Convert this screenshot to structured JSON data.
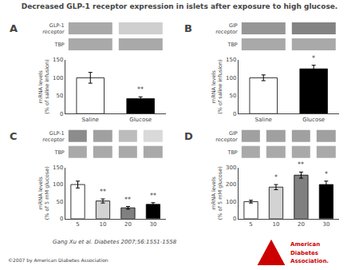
{
  "title": "Decreased GLP-1 receptor expression in islets after exposure to high glucose.",
  "citation": "Gang Xu et al. Diabetes 2007;56:1551-1558",
  "copyright": "©2007 by American Diabetes Association",
  "logo": {
    "texts": [
      "American",
      "Diabetes",
      "Association."
    ],
    "color": "#cc0000"
  },
  "chart_data": [
    {
      "type": "heatmap",
      "title": "A",
      "categories": [
        "GLP-1\nreceptor",
        "TBP"
      ],
      "cells": [
        [
          0.45,
          0.25
        ],
        [
          0.45,
          0.45
        ]
      ],
      "zlim": [
        0,
        1
      ],
      "tick_labels": "y"
    },
    {
      "type": "bar",
      "categories": [
        "Saline",
        "Glucose"
      ],
      "values": [
        100,
        42
      ],
      "errors": [
        15,
        5
      ],
      "colors": [
        "white",
        "black"
      ],
      "ylabel": "mRNA levels\n(% of saline infusion)",
      "ylim": [
        0,
        150
      ],
      "yticks": [
        0,
        50,
        100,
        150
      ],
      "grid": false,
      "annotations": [
        {
          "category": "Glucose",
          "text": "**"
        }
      ]
    },
    {
      "type": "heatmap",
      "title": "B",
      "categories": [
        "GIP\nreceptor",
        "TBP"
      ],
      "cells": [
        [
          0.55,
          0.65
        ],
        [
          0.45,
          0.45
        ]
      ],
      "zlim": [
        0,
        1
      ],
      "tick_labels": "y"
    },
    {
      "type": "bar",
      "categories": [
        "Saline",
        "Glucose"
      ],
      "values": [
        100,
        125
      ],
      "errors": [
        8,
        10
      ],
      "colors": [
        "white",
        "black"
      ],
      "ylabel": "mRNA levels\n(% of saline infusion)",
      "ylim": [
        0,
        150
      ],
      "yticks": [
        0,
        50,
        100,
        150
      ],
      "grid": false,
      "annotations": [
        {
          "category": "Glucose",
          "text": "*"
        }
      ]
    },
    {
      "type": "heatmap",
      "title": "C",
      "categories": [
        "GLP-1\nreceptor",
        "TBP"
      ],
      "cells": [
        [
          0.6,
          0.5,
          0.35,
          0.2
        ],
        [
          0.45,
          0.45,
          0.45,
          0.45
        ]
      ],
      "zlim": [
        0,
        1
      ],
      "tick_labels": "y"
    },
    {
      "type": "bar",
      "categories": [
        "5",
        "10",
        "20",
        "30"
      ],
      "values": [
        100,
        52,
        32,
        42
      ],
      "errors": [
        10,
        6,
        4,
        5
      ],
      "colors": [
        "white",
        "lightgray",
        "gray",
        "black"
      ],
      "ylabel": "mRNA levels\n(% of 5 mM glucose)",
      "ylim": [
        0,
        150
      ],
      "yticks": [
        0,
        50,
        100,
        150
      ],
      "grid": false,
      "annotations": [
        {
          "category": "10",
          "text": "**"
        },
        {
          "category": "20",
          "text": "**"
        },
        {
          "category": "30",
          "text": "**"
        }
      ]
    },
    {
      "type": "heatmap",
      "title": "D",
      "categories": [
        "GIP\nreceptor",
        "TBP"
      ],
      "cells": [
        [
          0.5,
          0.5,
          0.5,
          0.5
        ],
        [
          0.45,
          0.45,
          0.45,
          0.45
        ]
      ],
      "zlim": [
        0,
        1
      ],
      "tick_labels": "y"
    },
    {
      "type": "bar",
      "categories": [
        "5",
        "10",
        "20",
        "30"
      ],
      "values": [
        100,
        185,
        255,
        200
      ],
      "errors": [
        8,
        15,
        18,
        20
      ],
      "colors": [
        "white",
        "lightgray",
        "gray",
        "black"
      ],
      "ylabel": "mRNA levels\n(% of 5 mM glucose)",
      "ylim": [
        0,
        300
      ],
      "yticks": [
        0,
        100,
        200,
        300
      ],
      "grid": false,
      "annotations": [
        {
          "category": "10",
          "text": "*"
        },
        {
          "category": "20",
          "text": "**"
        },
        {
          "category": "30",
          "text": "*"
        }
      ]
    }
  ]
}
